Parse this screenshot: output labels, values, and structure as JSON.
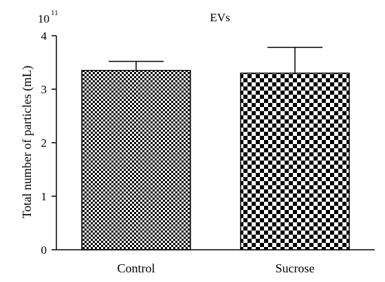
{
  "chart_data": {
    "type": "bar",
    "title": "EVs",
    "xlabel": "",
    "ylabel": "Total number of particles (mL)",
    "y_multiplier": {
      "base": "10",
      "exponent": "11"
    },
    "categories": [
      "Control",
      "Sucrose"
    ],
    "values": [
      3.35,
      3.3
    ],
    "error_upper": [
      0.17,
      0.48
    ],
    "ylim": [
      0,
      4
    ],
    "yticks": [
      0,
      1,
      2,
      3,
      4
    ],
    "grid": false,
    "legend": "none",
    "bar_patterns": [
      "fine-checker",
      "coarse-checker"
    ],
    "colors": {
      "pattern_dark": "#000000",
      "pattern_light": "#ffffff",
      "axis": "#000000"
    }
  }
}
